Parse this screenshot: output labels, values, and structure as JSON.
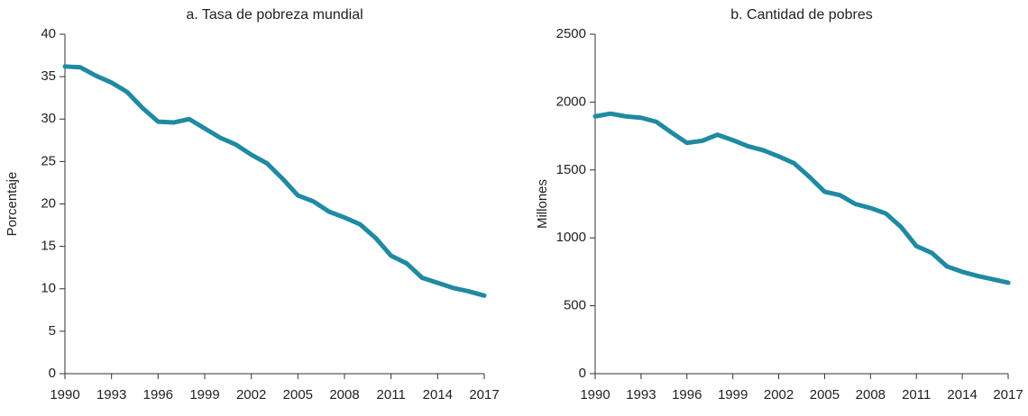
{
  "chart_data": [
    {
      "type": "line",
      "title": "a. Tasa de pobreza mundial",
      "y_label": "Porcentaje",
      "x": [
        1990,
        1991,
        1992,
        1993,
        1994,
        1995,
        1996,
        1997,
        1998,
        1999,
        2000,
        2001,
        2002,
        2003,
        2004,
        2005,
        2006,
        2007,
        2008,
        2009,
        2010,
        2011,
        2012,
        2013,
        2014,
        2015,
        2016,
        2017
      ],
      "values": [
        36.2,
        36.1,
        35.1,
        34.3,
        33.2,
        31.3,
        29.7,
        29.6,
        30.0,
        28.9,
        27.8,
        27.0,
        25.8,
        24.8,
        23.0,
        21.0,
        20.3,
        19.1,
        18.4,
        17.6,
        16.0,
        13.9,
        13.0,
        11.3,
        10.7,
        10.1,
        9.7,
        9.2
      ],
      "color": "#1f8aa2",
      "xlim": [
        1990,
        2017
      ],
      "xticks": [
        1990,
        1993,
        1996,
        1999,
        2002,
        2005,
        2008,
        2011,
        2014,
        2017
      ],
      "ylim": [
        0,
        40
      ],
      "yticks": [
        0,
        5,
        10,
        15,
        20,
        25,
        30,
        35,
        40
      ]
    },
    {
      "type": "line",
      "title": "b. Cantidad de pobres",
      "y_label": "Millones",
      "x": [
        1990,
        1991,
        1992,
        1993,
        1994,
        1995,
        1996,
        1997,
        1998,
        1999,
        2000,
        2001,
        2002,
        2003,
        2004,
        2005,
        2006,
        2007,
        2008,
        2009,
        2010,
        2011,
        2012,
        2013,
        2014,
        2015,
        2016,
        2017
      ],
      "values": [
        1895,
        1915,
        1895,
        1885,
        1855,
        1775,
        1700,
        1715,
        1760,
        1720,
        1675,
        1645,
        1600,
        1550,
        1450,
        1340,
        1315,
        1250,
        1220,
        1180,
        1080,
        940,
        890,
        790,
        750,
        720,
        695,
        670
      ],
      "color": "#1f8aa2",
      "xlim": [
        1990,
        2017
      ],
      "xticks": [
        1990,
        1993,
        1996,
        1999,
        2002,
        2005,
        2008,
        2011,
        2014,
        2017
      ],
      "ylim": [
        0,
        2500
      ],
      "yticks": [
        0,
        500,
        1000,
        1500,
        2000,
        2500
      ]
    }
  ]
}
